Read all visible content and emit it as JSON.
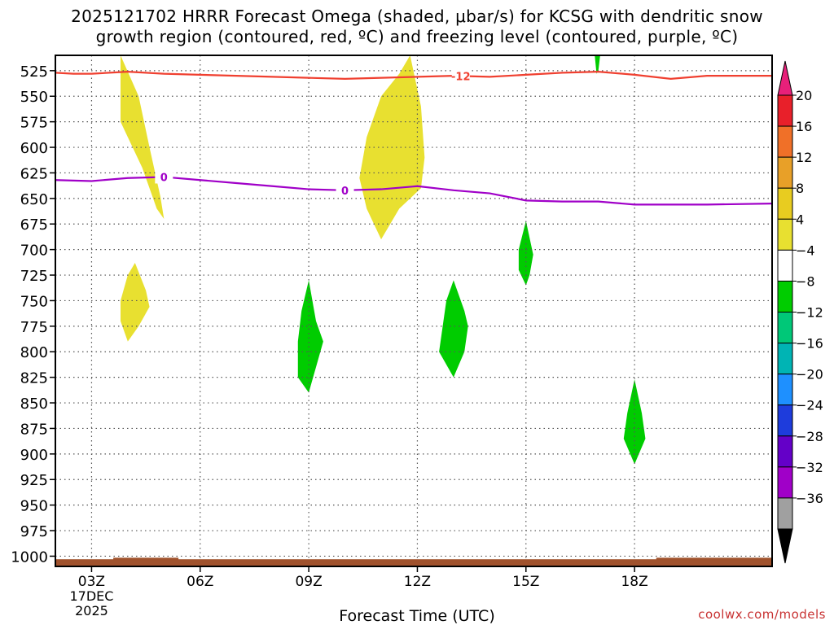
{
  "chart_data": {
    "type": "contour",
    "title_line1": "2025121702 HRRR Forecast Omega (shaded, μbar/s) for KCSG with dendritic snow",
    "title_line2": "growth region (contoured, red, ºC) and freezing level (contoured, purple, ºC)",
    "xlabel": "Forecast Time (UTC)",
    "credit": "coolwx.com/models",
    "x_range_hours": [
      2,
      21.8
    ],
    "x_ticks": [
      {
        "hour": 3,
        "label": "03Z"
      },
      {
        "hour": 6,
        "label": "06Z"
      },
      {
        "hour": 9,
        "label": "09Z"
      },
      {
        "hour": 12,
        "label": "12Z"
      },
      {
        "hour": 15,
        "label": "15Z"
      },
      {
        "hour": 18,
        "label": "18Z"
      }
    ],
    "date_label": [
      "17DEC",
      "2025"
    ],
    "y_ticks_hpa": [
      525,
      550,
      575,
      600,
      625,
      650,
      675,
      700,
      725,
      750,
      775,
      800,
      825,
      850,
      875,
      900,
      925,
      950,
      975,
      1000
    ],
    "y_range_hpa": [
      510,
      1010
    ],
    "colorbar": {
      "labels": [
        "20",
        "16",
        "12",
        "8",
        "4",
        "−4",
        "−8",
        "−12",
        "−16",
        "−20",
        "−24",
        "−28",
        "−32",
        "−36"
      ],
      "colors": [
        "#e8202a",
        "#f07028",
        "#e8a028",
        "#e8cc20",
        "#e8e030",
        "#ffffff",
        "#00cc00",
        "#00c878",
        "#00b4b4",
        "#1e90ff",
        "#1e3cdc",
        "#6400c8",
        "#a000c8",
        "#a0a0a0"
      ],
      "top_arrow_color": "#e8207a",
      "bottom_arrow_color": "#000000"
    },
    "dgz_contour": {
      "label": "-12",
      "color": "#f04030",
      "points": [
        [
          2.0,
          527
        ],
        [
          2.5,
          528
        ],
        [
          3.0,
          528
        ],
        [
          4.0,
          526
        ],
        [
          5.0,
          528
        ],
        [
          6.0,
          529
        ],
        [
          7.0,
          530
        ],
        [
          8.0,
          531
        ],
        [
          9.0,
          532
        ],
        [
          10.0,
          533
        ],
        [
          11.0,
          532
        ],
        [
          12.0,
          531
        ],
        [
          13.0,
          530
        ],
        [
          14.0,
          531
        ],
        [
          15.0,
          529
        ],
        [
          16.0,
          527
        ],
        [
          17.0,
          526
        ],
        [
          18.0,
          529
        ],
        [
          19.0,
          533
        ],
        [
          20.0,
          530
        ],
        [
          21.8,
          530
        ]
      ]
    },
    "freezing_contour": {
      "label": "0",
      "color": "#a000c8",
      "points": [
        [
          2.0,
          632
        ],
        [
          3.0,
          633
        ],
        [
          4.0,
          630
        ],
        [
          5.0,
          629
        ],
        [
          6.0,
          632
        ],
        [
          7.0,
          635
        ],
        [
          8.0,
          638
        ],
        [
          9.0,
          641
        ],
        [
          10.0,
          642
        ],
        [
          11.0,
          641
        ],
        [
          12.0,
          638
        ],
        [
          13.0,
          642
        ],
        [
          14.0,
          645
        ],
        [
          15.0,
          652
        ],
        [
          16.0,
          653
        ],
        [
          17.0,
          653
        ],
        [
          18.0,
          656
        ],
        [
          19.0,
          656
        ],
        [
          20.0,
          656
        ],
        [
          21.8,
          655
        ]
      ]
    },
    "omega_regions": [
      {
        "value_band": "4 to 8",
        "color": "#e8e030",
        "points": [
          [
            3.0,
            510
          ],
          [
            3.8,
            510
          ],
          [
            4.3,
            550
          ],
          [
            4.6,
            600
          ],
          [
            4.9,
            648
          ],
          [
            5.0,
            670
          ],
          [
            4.8,
            660
          ],
          [
            4.4,
            620
          ],
          [
            4.0,
            590
          ],
          [
            3.8,
            575
          ],
          [
            3.8,
            510
          ]
        ]
      },
      {
        "value_band": "4 to 8",
        "color": "#e8e030",
        "points": [
          [
            11.8,
            510
          ],
          [
            12.1,
            560
          ],
          [
            12.2,
            610
          ],
          [
            12.1,
            640
          ],
          [
            11.5,
            660
          ],
          [
            11.0,
            690
          ],
          [
            10.6,
            660
          ],
          [
            10.4,
            630
          ],
          [
            10.6,
            590
          ],
          [
            11.0,
            550
          ],
          [
            11.5,
            528
          ],
          [
            11.8,
            510
          ]
        ]
      },
      {
        "value_band": "4 to 8",
        "color": "#e8e030",
        "points": [
          [
            4.2,
            713
          ],
          [
            4.5,
            740
          ],
          [
            4.6,
            756
          ],
          [
            4.3,
            775
          ],
          [
            4.0,
            790
          ],
          [
            3.8,
            770
          ],
          [
            3.8,
            750
          ],
          [
            4.0,
            725
          ]
        ]
      },
      {
        "value_band": "-4 to -8",
        "color": "#00cc00",
        "points": [
          [
            9.0,
            730
          ],
          [
            9.2,
            770
          ],
          [
            9.4,
            790
          ],
          [
            9.2,
            815
          ],
          [
            9.0,
            840
          ],
          [
            8.7,
            825
          ],
          [
            8.7,
            790
          ],
          [
            8.8,
            760
          ]
        ]
      },
      {
        "value_band": "-4 to -8",
        "color": "#00cc00",
        "points": [
          [
            13.0,
            730
          ],
          [
            13.3,
            760
          ],
          [
            13.4,
            775
          ],
          [
            13.3,
            800
          ],
          [
            13.0,
            825
          ],
          [
            12.6,
            800
          ],
          [
            12.7,
            775
          ],
          [
            12.8,
            750
          ]
        ]
      },
      {
        "value_band": "-4 to -8",
        "color": "#00cc00",
        "points": [
          [
            15.0,
            672
          ],
          [
            15.2,
            705
          ],
          [
            15.1,
            725
          ],
          [
            15.0,
            735
          ],
          [
            14.8,
            720
          ],
          [
            14.8,
            700
          ]
        ]
      },
      {
        "value_band": "-4 to -8",
        "color": "#00cc00",
        "points": [
          [
            18.0,
            827
          ],
          [
            18.2,
            860
          ],
          [
            18.3,
            885
          ],
          [
            18.0,
            910
          ],
          [
            17.7,
            885
          ],
          [
            17.8,
            860
          ]
        ]
      },
      {
        "value_band": "-4 to -8",
        "color": "#00cc00",
        "points": [
          [
            16.9,
            510
          ],
          [
            17.05,
            510
          ],
          [
            17.0,
            525
          ],
          [
            16.95,
            528
          ]
        ]
      }
    ]
  }
}
